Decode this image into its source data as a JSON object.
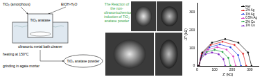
{
  "scheme": {
    "reagent": "TiO₂ (amorphous)",
    "solvent": "EtOH-H₂O",
    "bath": "ultrasonic metal bath cleaner",
    "vessel_content": "TiO₂ anatase",
    "step_1": "heating at 150°C",
    "step_2": "grinding in agate mortar",
    "product": "TiO₂ anatase powder"
  },
  "title": "The Reaction of the non-ultrasonicchemical-induction of TiO₂ anatase powder",
  "chart_data": {
    "type": "scatter",
    "x_label": "Z' (kΩ)",
    "y_label": "-Z'' (kΩ)",
    "xlim": [
      0,
      350
    ],
    "xticks": [
      0,
      100,
      200,
      300
    ],
    "ylim": [
      0,
      350
    ],
    "yticks": [
      0,
      100,
      200,
      300
    ],
    "grid": false,
    "legend": "upper right",
    "line_style": "solid",
    "marker": "circle",
    "series": [
      {
        "name": "Ref",
        "color": "#000000",
        "x": [
          10,
          30,
          85,
          160,
          235,
          290,
          310
        ],
        "values": [
          0,
          75,
          130,
          150,
          130,
          75,
          0
        ]
      },
      {
        "name": "2% Ag",
        "color": "#e02020",
        "x": [
          10,
          27,
          78,
          145,
          213,
          262,
          280
        ],
        "values": [
          0,
          68,
          117,
          135,
          117,
          68,
          0
        ]
      },
      {
        "name": "1% Ag",
        "color": "#2040e0",
        "x": [
          10,
          26,
          70,
          130,
          190,
          234,
          250
        ],
        "values": [
          0,
          60,
          104,
          120,
          104,
          60,
          0
        ]
      },
      {
        "name": "0.5% Ag",
        "color": "#e040c0",
        "x": [
          10,
          24,
          63,
          115,
          168,
          206,
          220
        ],
        "values": [
          0,
          53,
          91,
          105,
          91,
          53,
          0
        ]
      },
      {
        "name": "2% Cu",
        "color": "#20a040",
        "x": [
          10,
          22,
          55,
          100,
          145,
          178,
          190
        ],
        "values": [
          0,
          45,
          78,
          90,
          78,
          45,
          0
        ]
      },
      {
        "name": "1% Cu",
        "color": "#8020c0",
        "x": [
          10,
          20,
          48,
          85,
          123,
          150,
          160
        ],
        "values": [
          0,
          38,
          65,
          75,
          65,
          38,
          0
        ]
      }
    ]
  }
}
